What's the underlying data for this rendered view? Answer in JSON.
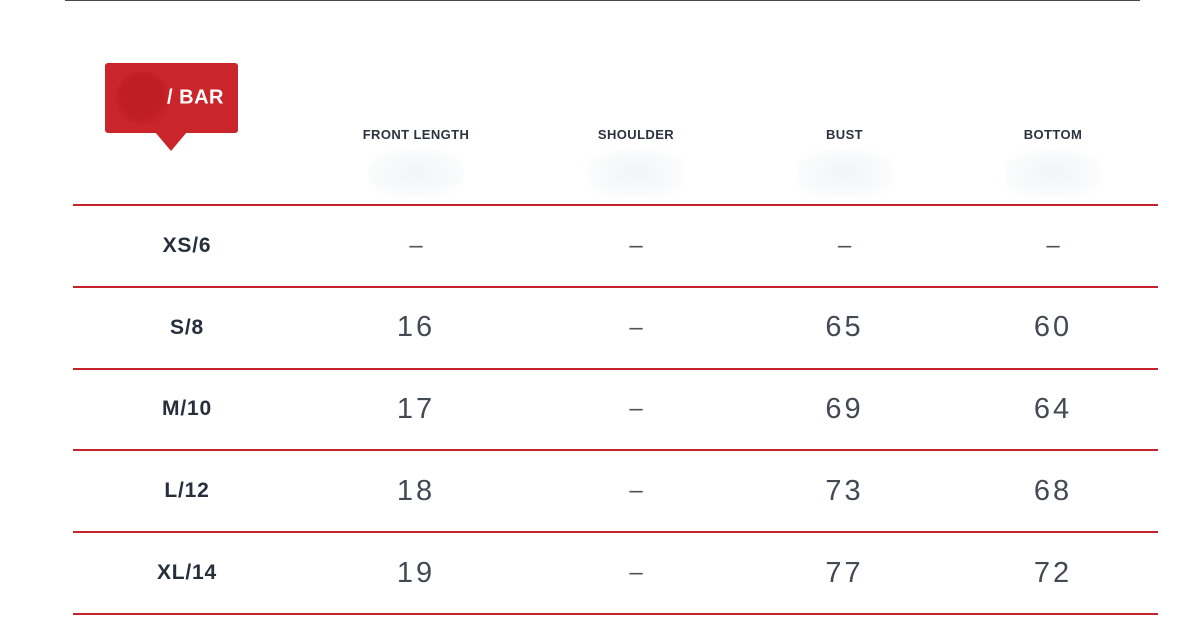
{
  "badge": {
    "label": "/ BAR",
    "background_color": "#cb252c",
    "logo_circle_color": "#c01e25",
    "text_color": "#ffffff"
  },
  "colors": {
    "divider_red": "#c3232a",
    "header_text": "#2b333f",
    "size_label_text": "#262f3b",
    "value_text": "#434a54"
  },
  "table": {
    "columns": [
      "",
      "FRONT LENGTH",
      "SHOULDER",
      "BUST",
      "BOTTOM"
    ],
    "rows": [
      {
        "size": "XS/6",
        "values": [
          "–",
          "–",
          "–",
          "–"
        ]
      },
      {
        "size": "S/8",
        "values": [
          "16",
          "–",
          "65",
          "60"
        ]
      },
      {
        "size": "M/10",
        "values": [
          "17",
          "–",
          "69",
          "64"
        ]
      },
      {
        "size": "L/12",
        "values": [
          "18",
          "–",
          "73",
          "68"
        ]
      },
      {
        "size": "XL/14",
        "values": [
          "19",
          "–",
          "77",
          "72"
        ]
      }
    ]
  }
}
